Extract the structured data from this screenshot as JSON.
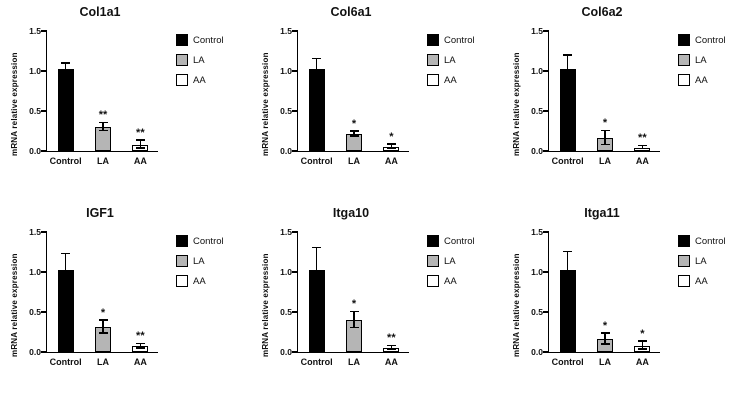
{
  "figure": {
    "background": "#ffffff",
    "axis_color": "#000000"
  },
  "chart_data": [
    {
      "type": "bar",
      "title": "Col1a1",
      "ylabel": "mRNA relative expression",
      "categories": [
        "Control",
        "LA",
        "AA"
      ],
      "values": [
        1.02,
        0.3,
        0.08
      ],
      "errors": [
        0.07,
        0.05,
        0.05
      ],
      "significance": [
        "",
        "**",
        "**"
      ],
      "ylim": [
        0,
        1.5
      ],
      "yticks": [
        0.0,
        0.5,
        1.0,
        1.5
      ],
      "bar_colors": [
        "#000000",
        "#b5b5b5",
        "#ffffff"
      ],
      "legend": [
        "Control",
        "LA",
        "AA"
      ],
      "legend_position": "right",
      "grid": false
    },
    {
      "type": "bar",
      "title": "Col6a1",
      "ylabel": "mRNA relative expression",
      "categories": [
        "Control",
        "LA",
        "AA"
      ],
      "values": [
        1.02,
        0.21,
        0.05
      ],
      "errors": [
        0.13,
        0.03,
        0.03
      ],
      "significance": [
        "",
        "*",
        "*"
      ],
      "ylim": [
        0,
        1.5
      ],
      "yticks": [
        0.0,
        0.5,
        1.0,
        1.5
      ],
      "bar_colors": [
        "#000000",
        "#b5b5b5",
        "#ffffff"
      ],
      "legend": [
        "Control",
        "LA",
        "AA"
      ],
      "legend_position": "right",
      "grid": false
    },
    {
      "type": "bar",
      "title": "Col6a2",
      "ylabel": "mRNA relative expression",
      "categories": [
        "Control",
        "LA",
        "AA"
      ],
      "values": [
        1.02,
        0.16,
        0.04
      ],
      "errors": [
        0.17,
        0.09,
        0.02
      ],
      "significance": [
        "",
        "*",
        "**"
      ],
      "ylim": [
        0,
        1.5
      ],
      "yticks": [
        0.0,
        0.5,
        1.0,
        1.5
      ],
      "bar_colors": [
        "#000000",
        "#b5b5b5",
        "#ffffff"
      ],
      "legend": [
        "Control",
        "LA",
        "AA"
      ],
      "legend_position": "right",
      "grid": false
    },
    {
      "type": "bar",
      "title": "IGF1",
      "ylabel": "mRNA relative expression",
      "categories": [
        "Control",
        "LA",
        "AA"
      ],
      "values": [
        1.02,
        0.31,
        0.07
      ],
      "errors": [
        0.2,
        0.08,
        0.03
      ],
      "significance": [
        "",
        "*",
        "**"
      ],
      "ylim": [
        0,
        1.5
      ],
      "yticks": [
        0.0,
        0.5,
        1.0,
        1.5
      ],
      "bar_colors": [
        "#000000",
        "#b5b5b5",
        "#ffffff"
      ],
      "legend": [
        "Control",
        "LA",
        "AA"
      ],
      "legend_position": "right",
      "grid": false
    },
    {
      "type": "bar",
      "title": "Itga10",
      "ylabel": "mRNA relative expression",
      "categories": [
        "Control",
        "LA",
        "AA"
      ],
      "values": [
        1.03,
        0.4,
        0.05
      ],
      "errors": [
        0.27,
        0.1,
        0.02
      ],
      "significance": [
        "",
        "*",
        "**"
      ],
      "ylim": [
        0,
        1.5
      ],
      "yticks": [
        0.0,
        0.5,
        1.0,
        1.5
      ],
      "bar_colors": [
        "#000000",
        "#b5b5b5",
        "#ffffff"
      ],
      "legend": [
        "Control",
        "LA",
        "AA"
      ],
      "legend_position": "right",
      "grid": false
    },
    {
      "type": "bar",
      "title": "Itga11",
      "ylabel": "mRNA relative expression",
      "categories": [
        "Control",
        "LA",
        "AA"
      ],
      "values": [
        1.02,
        0.16,
        0.08
      ],
      "errors": [
        0.23,
        0.07,
        0.05
      ],
      "significance": [
        "",
        "*",
        "*"
      ],
      "ylim": [
        0,
        1.5
      ],
      "yticks": [
        0.0,
        0.5,
        1.0,
        1.5
      ],
      "bar_colors": [
        "#000000",
        "#b5b5b5",
        "#ffffff"
      ],
      "legend": [
        "Control",
        "LA",
        "AA"
      ],
      "legend_position": "right",
      "grid": false
    }
  ]
}
